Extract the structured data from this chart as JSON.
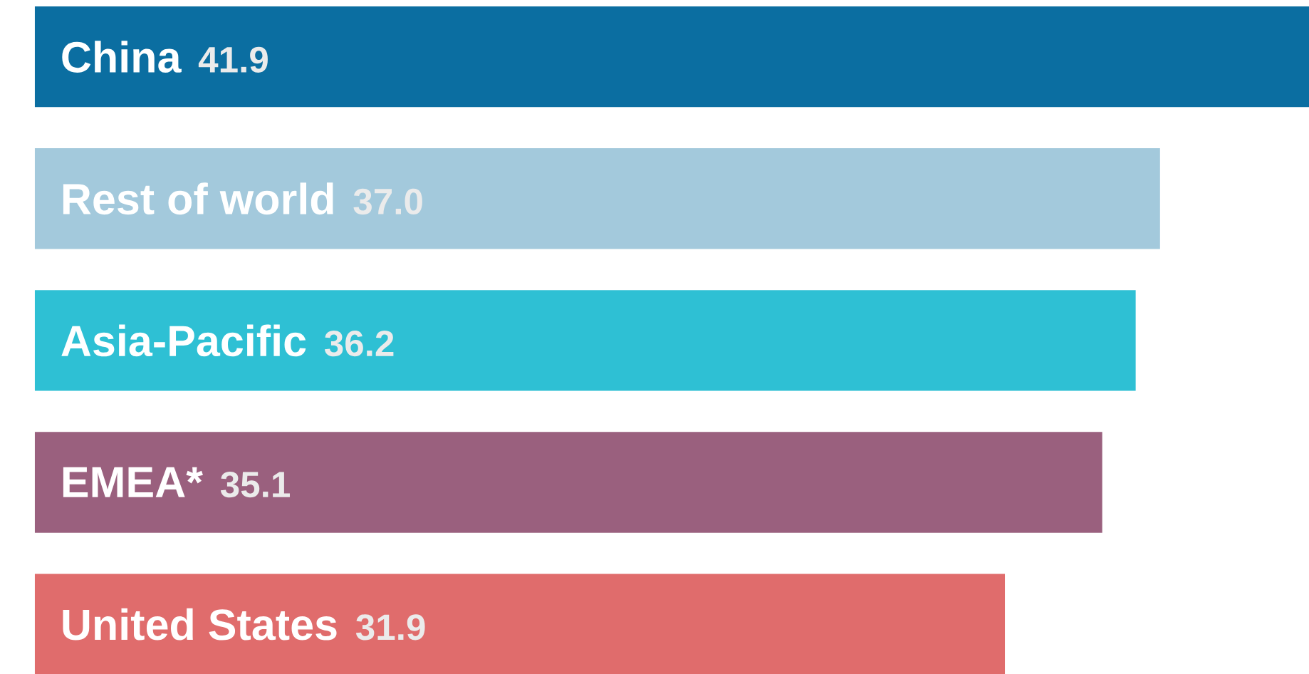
{
  "chart_data": {
    "type": "bar",
    "orientation": "horizontal",
    "categories": [
      "China",
      "Rest of world",
      "Asia-Pacific",
      "EMEA*",
      "United States"
    ],
    "values": [
      41.9,
      37.0,
      36.2,
      35.1,
      31.9
    ],
    "value_labels": [
      "41.9",
      "37.0",
      "36.2",
      "35.1",
      "31.9"
    ],
    "colors": [
      "#0b6ea1",
      "#a3c9dc",
      "#2ec0d4",
      "#9a607e",
      "#e06c6c"
    ],
    "xlim": [
      0,
      41.9
    ]
  }
}
